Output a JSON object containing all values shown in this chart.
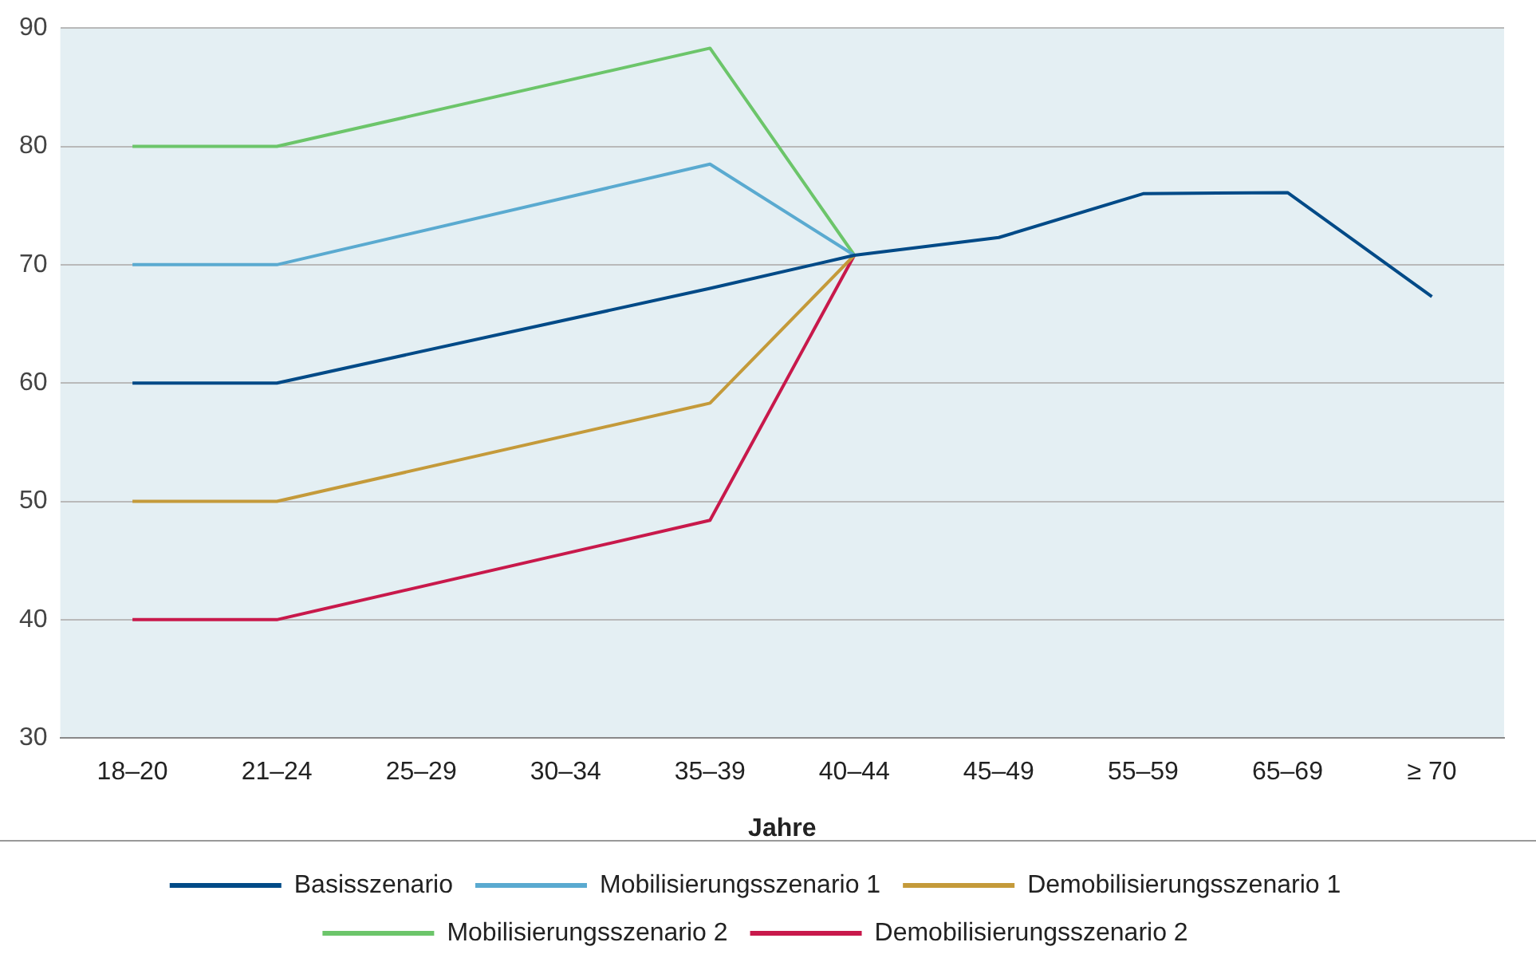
{
  "chart_data": {
    "type": "line",
    "xlabel": "Jahre",
    "categories": [
      "18–20",
      "21–24",
      "25–29",
      "30–34",
      "35–39",
      "40–44",
      "45–49",
      "55–59",
      "65–69",
      "≥ 70"
    ],
    "series": [
      {
        "name": "Basisszenario",
        "color": "#004a87",
        "values": [
          60,
          60,
          null,
          null,
          68,
          70.8,
          72.3,
          76,
          76.1,
          67.3
        ]
      },
      {
        "name": "Mobilisierungsszenario 1",
        "color": "#5aaad0",
        "values": [
          70,
          70,
          null,
          null,
          78.5,
          70.8,
          null,
          null,
          null,
          null
        ]
      },
      {
        "name": "Demobilisierungsszenario 1",
        "color": "#c49a3a",
        "values": [
          50,
          50,
          null,
          null,
          58.3,
          70.8,
          null,
          null,
          null,
          null
        ]
      },
      {
        "name": "Mobilisierungsszenario 2",
        "color": "#6cc56a",
        "values": [
          80,
          80,
          null,
          null,
          88.3,
          70.8,
          null,
          null,
          null,
          null
        ]
      },
      {
        "name": "Demobilisierungsszenario 2",
        "color": "#c8194b",
        "values": [
          40,
          40,
          null,
          null,
          48.4,
          70.8,
          null,
          null,
          null,
          null
        ]
      }
    ],
    "ylim": [
      30,
      90
    ],
    "yticks": [
      30,
      40,
      50,
      60,
      70,
      80,
      90
    ],
    "grid": "y",
    "legend": "bottom",
    "marker": "none",
    "line_style": "solid"
  }
}
